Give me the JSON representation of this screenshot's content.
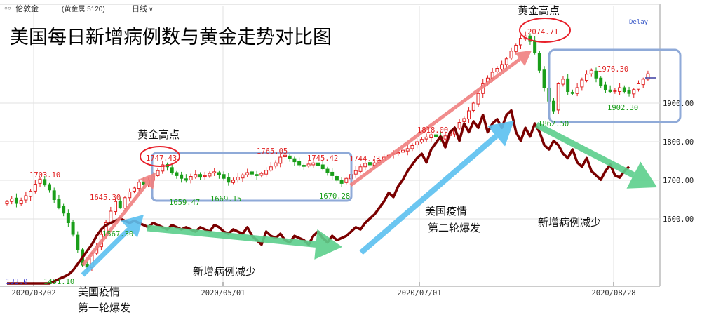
{
  "toolbar": {
    "instrument_label": "伦敦金",
    "product_label": "(黄金属 5120)",
    "period_label": "日线",
    "delay_label": "Delay"
  },
  "chart_data": {
    "type": "line",
    "title": "美国每日新增病例数与黄金走势对比图",
    "xlabel": "",
    "ylabel": "",
    "x_ticks": [
      "2020/03/02",
      "2020/05/01",
      "2020/07/01",
      "2020/08/28"
    ],
    "y_ticks": [
      1600,
      1700,
      1800,
      1900
    ],
    "y_tick_labels": [
      "1600.00",
      "1700.00",
      "1800.00",
      "1900.00"
    ],
    "ylim": [
      1450,
      2100
    ],
    "grid": true,
    "series": [
      {
        "name": "",
        "kind": "candlestick",
        "color_up": "#e02020",
        "color_down": "#1a9e1a",
        "values": [
          1645,
          1652,
          1640,
          1648,
          1660,
          1672,
          1690,
          1703,
          1688,
          1675,
          1650,
          1630,
          1615,
          1590,
          1560,
          1520,
          1480,
          1475,
          1510,
          1530,
          1560,
          1590,
          1620,
          1645,
          1630,
          1655,
          1670,
          1680,
          1695,
          1690,
          1700,
          1710,
          1725,
          1740,
          1735,
          1720,
          1712,
          1705,
          1700,
          1710,
          1715,
          1708,
          1712,
          1718,
          1722,
          1715,
          1705,
          1695,
          1700,
          1708,
          1714,
          1720,
          1716,
          1712,
          1718,
          1726,
          1735,
          1745,
          1760,
          1765,
          1756,
          1748,
          1740,
          1736,
          1742,
          1745,
          1738,
          1730,
          1720,
          1712,
          1700,
          1692,
          1705,
          1715,
          1725,
          1735,
          1744,
          1740,
          1745,
          1752,
          1760,
          1765,
          1770,
          1772,
          1778,
          1782,
          1790,
          1800,
          1806,
          1812,
          1818,
          1812,
          1808,
          1815,
          1822,
          1835,
          1850,
          1860,
          1880,
          1900,
          1925,
          1950,
          1965,
          1980,
          1990,
          2000,
          2015,
          2035,
          2050,
          2068,
          2074,
          2060,
          2030,
          1985,
          1940,
          1905,
          1880,
          1950,
          1962,
          1930,
          1925,
          1940,
          1960,
          1975,
          1985,
          1965,
          1945,
          1935,
          1930,
          1932,
          1940,
          1930,
          1925,
          1935,
          1950,
          1962,
          1976
        ]
      },
      {
        "name": "",
        "kind": "cases",
        "color": "#7a0000",
        "note": "US daily new cases, plotted on a secondary scale with no axis",
        "values": [
          0,
          0,
          0,
          0,
          0,
          0,
          0,
          0,
          0,
          0,
          1,
          2,
          3,
          4,
          6,
          9,
          12,
          15,
          18,
          22,
          25,
          27,
          28,
          29,
          30,
          29,
          28,
          29,
          28,
          27,
          26,
          28,
          27,
          26,
          25,
          27,
          26,
          25,
          26,
          25,
          24,
          26,
          25,
          24,
          27,
          26,
          24,
          23,
          25,
          24,
          23,
          26,
          22,
          20,
          18,
          24,
          22,
          21,
          23,
          20,
          19,
          22,
          21,
          20,
          18,
          22,
          24,
          21,
          19,
          22,
          20,
          21,
          22,
          24,
          26,
          25,
          28,
          30,
          32,
          35,
          38,
          42,
          40,
          45,
          48,
          52,
          55,
          58,
          60,
          56,
          62,
          65,
          68,
          63,
          70,
          72,
          66,
          74,
          70,
          75,
          72,
          78,
          70,
          74,
          76,
          72,
          78,
          80,
          70,
          66,
          72,
          68,
          74,
          70,
          64,
          62,
          66,
          64,
          60,
          58,
          62,
          56,
          54,
          58,
          52,
          50,
          48,
          52,
          55,
          50,
          49,
          52,
          54
        ]
      }
    ],
    "annotations": [
      {
        "text": "1703.10",
        "color": "#e02020"
      },
      {
        "text": "1645.30",
        "color": "#e02020"
      },
      {
        "text": "1567.30",
        "color": "#1a9e1a"
      },
      {
        "text": "1451.10",
        "color": "#1a9e1a"
      },
      {
        "text": "1747.43",
        "color": "#e02020"
      },
      {
        "text": "1659.47",
        "color": "#1a9e1a"
      },
      {
        "text": "1669.15",
        "color": "#1a9e1a"
      },
      {
        "text": "1765.05",
        "color": "#e02020"
      },
      {
        "text": "1745.42",
        "color": "#e02020"
      },
      {
        "text": "1744.73",
        "color": "#e02020"
      },
      {
        "text": "1670.28",
        "color": "#1a9e1a"
      },
      {
        "text": "1818.00",
        "color": "#e02020"
      },
      {
        "text": "2074.71",
        "color": "#e02020"
      },
      {
        "text": "1976.30",
        "color": "#e02020"
      },
      {
        "text": "1902.30",
        "color": "#1a9e1a"
      },
      {
        "text": "1862.50",
        "color": "#1a9e1a"
      },
      {
        "text": "133.0",
        "color": "#3333cc"
      }
    ],
    "callouts": [
      {
        "text": "黄金高点"
      },
      {
        "text": "黄金高点"
      },
      {
        "text": "美国疫情"
      },
      {
        "text": "第一轮爆发"
      },
      {
        "text": "新增病例减少"
      },
      {
        "text": "美国疫情"
      },
      {
        "text": "第二轮爆发"
      },
      {
        "text": "新增病例减少"
      }
    ],
    "colors": {
      "arrow_up": "#f08080",
      "arrow_cases_up": "#5bc0f0",
      "arrow_down": "#5ccf8c",
      "box": "#8faad8",
      "grid": "#e2e2e2"
    }
  }
}
